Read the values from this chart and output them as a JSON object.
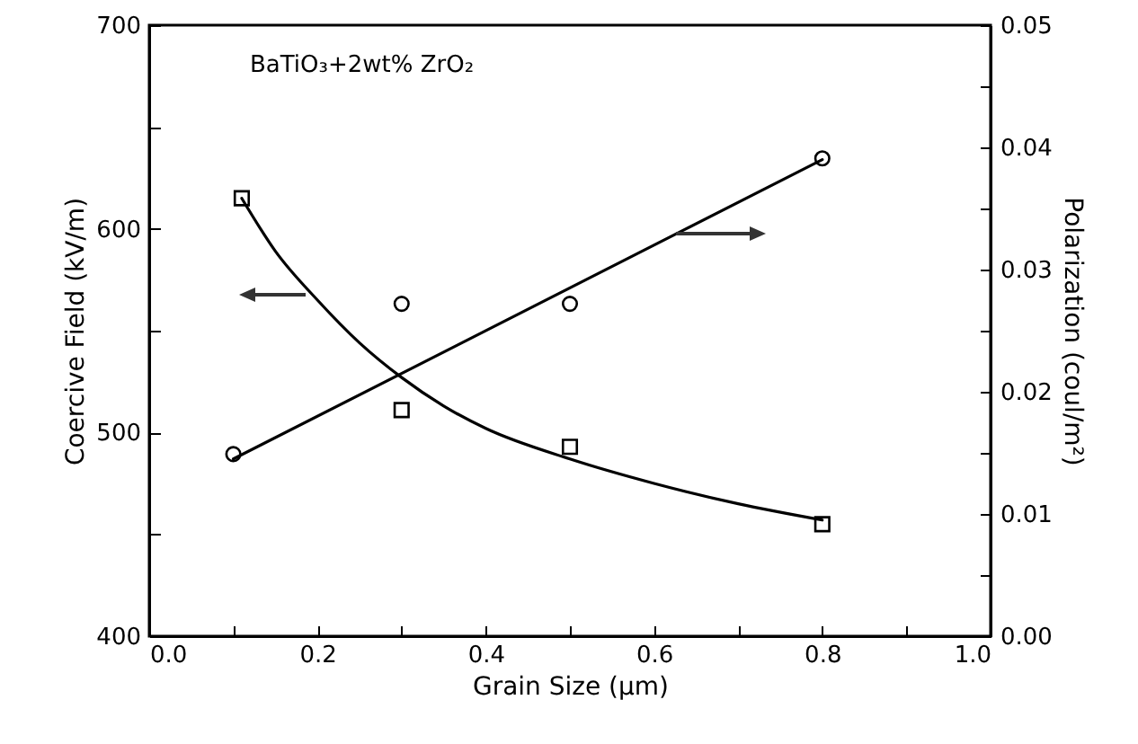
{
  "chart_data": {
    "type": "scatter",
    "xlabel": "Grain Size (μm)",
    "ylabel": "Coercive Field (kV/m)",
    "y2label": "Polarization (coul/m²)",
    "annotations": [
      "BaTiO₃+2wt% ZrO₂"
    ],
    "xlim": [
      0,
      1
    ],
    "xticks": [
      {
        "value": 0,
        "label": "0.0"
      },
      {
        "value": 0.1,
        "label": null
      },
      {
        "value": 0.2,
        "label": "0.2"
      },
      {
        "value": 0.3,
        "label": null
      },
      {
        "value": 0.4,
        "label": "0.4"
      },
      {
        "value": 0.5,
        "label": null
      },
      {
        "value": 0.6,
        "label": "0.6"
      },
      {
        "value": 0.7,
        "label": null
      },
      {
        "value": 0.8,
        "label": "0.8"
      },
      {
        "value": 0.9,
        "label": null
      },
      {
        "value": 1,
        "label": "1.0"
      }
    ],
    "ylim": [
      400,
      700
    ],
    "yticks": [
      400,
      {
        "value": 450,
        "label": null
      },
      500,
      {
        "value": 550,
        "label": null
      },
      600,
      {
        "value": 650,
        "label": null
      },
      700
    ],
    "y2lim": [
      0,
      0.05
    ],
    "y2ticks": [
      {
        "value": 0,
        "label": "0.00"
      },
      {
        "value": 0.005,
        "label": null
      },
      {
        "value": 0.01,
        "label": "0.01"
      },
      {
        "value": 0.015,
        "label": null
      },
      {
        "value": 0.02,
        "label": "0.02"
      },
      {
        "value": 0.025,
        "label": null
      },
      {
        "value": 0.03,
        "label": "0.03"
      },
      {
        "value": 0.035,
        "label": null
      },
      {
        "value": 0.04,
        "label": "0.04"
      },
      {
        "value": 0.045,
        "label": null
      },
      {
        "value": 0.05,
        "label": "0.05"
      }
    ],
    "grid": false,
    "series": [
      {
        "type": "line",
        "color": "#000000",
        "marker": "none",
        "x": [
          0.11,
          0.15,
          0.2,
          0.25,
          0.3,
          0.35,
          0.4,
          0.5,
          0.6,
          0.7,
          0.8
        ],
        "values": [
          615,
          589,
          565,
          544,
          527,
          513,
          502,
          487,
          475,
          465,
          457
        ]
      },
      {
        "type": "scatter",
        "color": "#000000",
        "marker": "square",
        "x": [
          0.11,
          0.3,
          0.5,
          0.8
        ],
        "values": [
          615,
          511,
          493,
          455
        ]
      },
      {
        "type": "line",
        "color": "#000000",
        "marker": "none",
        "axis": "y2",
        "x": [
          0.1,
          0.8
        ],
        "values": [
          0.0145,
          0.039
        ]
      },
      {
        "type": "scatter",
        "color": "#000000",
        "marker": "circle",
        "axis": "y2",
        "x": [
          0.1,
          0.3,
          0.5,
          0.8
        ],
        "values": [
          0.0149,
          0.0272,
          0.0272,
          0.0391
        ]
      }
    ]
  }
}
